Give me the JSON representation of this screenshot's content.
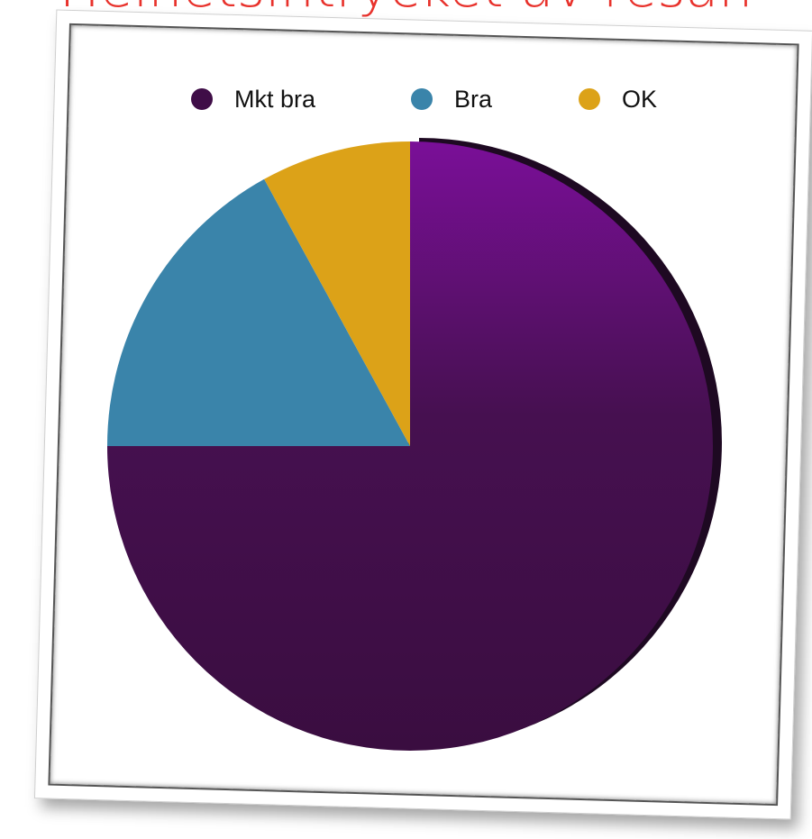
{
  "heading": "Helhetsintrycket av resan",
  "chart_data": {
    "type": "pie",
    "title": "",
    "legend_position": "top",
    "slices": [
      {
        "label": "Mkt bra",
        "value": 75,
        "color": "#3f0d47",
        "exploded": false
      },
      {
        "label": "Bra",
        "value": 17,
        "color": "#3a84aa",
        "exploded": false
      },
      {
        "label": "OK",
        "value": 8,
        "color": "#dca218",
        "exploded": false
      }
    ]
  }
}
